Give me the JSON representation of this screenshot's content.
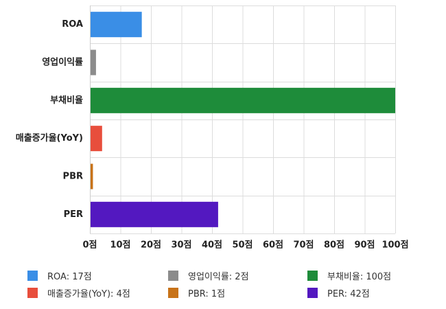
{
  "chart_data": {
    "type": "bar",
    "orientation": "horizontal",
    "categories": [
      "ROA",
      "영업이익률",
      "부채비율",
      "매출증가율(YoY)",
      "PBR",
      "PER"
    ],
    "values": [
      17,
      2,
      100,
      4,
      1,
      42
    ],
    "colors": [
      "#3a8ee6",
      "#8c8c8c",
      "#1e8c3a",
      "#e84e3c",
      "#c87319",
      "#5318c0"
    ],
    "xlim": [
      0,
      100
    ],
    "xticks": [
      0,
      10,
      20,
      30,
      40,
      50,
      60,
      70,
      80,
      90,
      100
    ],
    "tick_suffix": "점",
    "grid": true,
    "legend_position": "bottom",
    "legend": [
      "ROA: 17점",
      "영업이익률: 2점",
      "부채비율: 100점",
      "매출증가율(YoY): 4점",
      "PBR: 1점",
      "PER: 42점"
    ]
  }
}
